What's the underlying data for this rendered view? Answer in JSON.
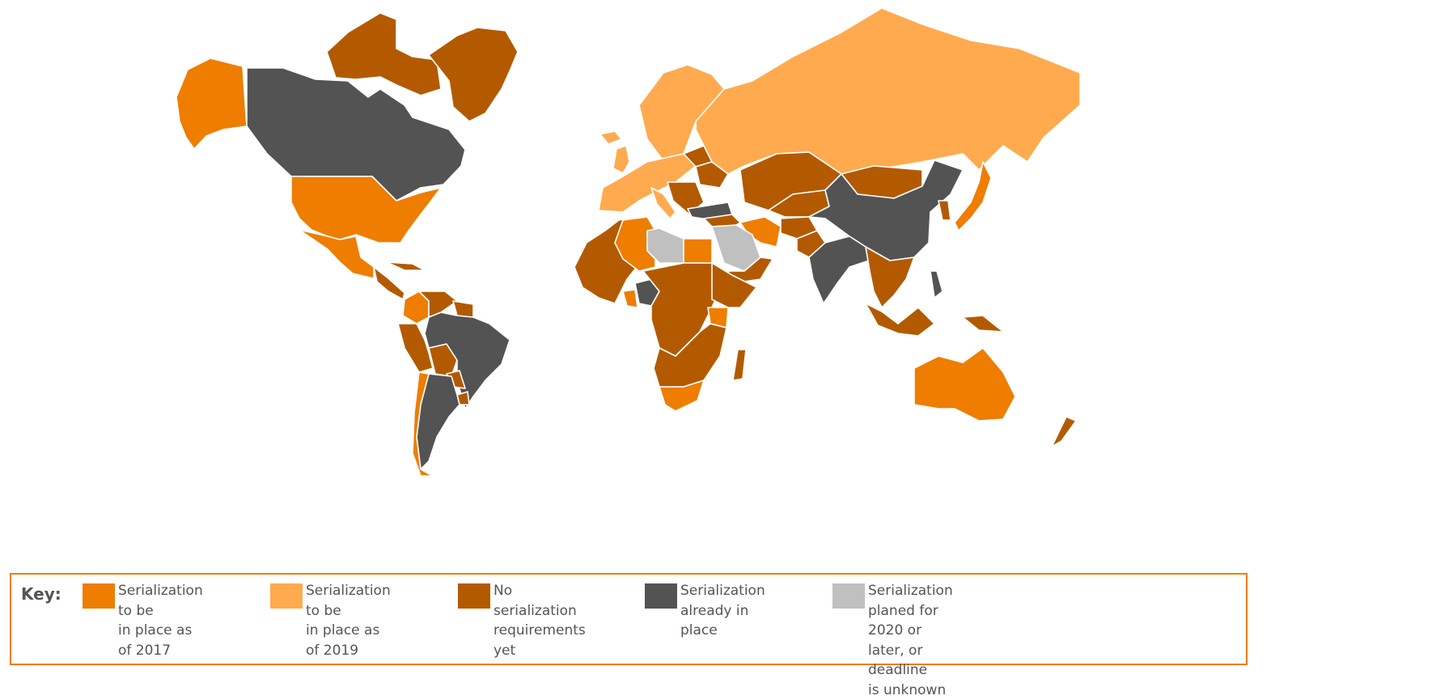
{
  "key": {
    "title": "Key:",
    "items": [
      {
        "id": "2017",
        "label": "Serialization to be\nin place as of 2017",
        "color": "#ee7d00"
      },
      {
        "id": "2019",
        "label": "Serialization to be\nin place as of 2019",
        "color": "#ffaa4f"
      },
      {
        "id": "none",
        "label": "No serialization\nrequirements yet",
        "color": "#b35a00"
      },
      {
        "id": "already",
        "label": "Serialization\nalready in place",
        "color": "#535353"
      },
      {
        "id": "later",
        "label": "Serialization\nplaned for 2020 or\nlater, or deadline\nis unknown",
        "color": "#c0c0c0"
      }
    ]
  },
  "regions": {
    "alaska": "2017",
    "canada": "already",
    "canada_arctic": "none",
    "greenland": "none",
    "usa": "2017",
    "mexico": "2017",
    "central_america": "none",
    "cuba": "none",
    "colombia": "2017",
    "venezuela": "none",
    "guianas": "none",
    "peru": "none",
    "bolivia": "none",
    "brazil": "already",
    "argentina": "already",
    "chile": "2017",
    "paraguay": "none",
    "uruguay": "none",
    "iceland": "2019",
    "uk": "2019",
    "scandinavia": "2019",
    "western_europe": "2019",
    "italy": "2019",
    "balkans": "none",
    "ukraine": "none",
    "belarus": "none",
    "russia": "2019",
    "turkey": "already",
    "kazakhstan": "none",
    "central_asia": "none",
    "mongolia": "none",
    "china": "already",
    "korea": "none",
    "japan": "2017",
    "iran": "2017",
    "afghanistan": "none",
    "pakistan": "none",
    "india": "already",
    "southeast_asia": "none",
    "philippines": "already",
    "indonesia": "none",
    "papua": "none",
    "australia": "2017",
    "new_zealand": "none",
    "morocco_west_africa": "none",
    "algeria": "2017",
    "libya": "later",
    "egypt": "2017",
    "saudi_arabia": "later",
    "middle_east": "none",
    "yemen_oman": "none",
    "nigeria": "already",
    "ghana": "2017",
    "central_africa": "none",
    "horn_of_africa": "none",
    "kenya": "2017",
    "southern_africa": "none",
    "south_africa": "2017",
    "madagascar": "none"
  }
}
